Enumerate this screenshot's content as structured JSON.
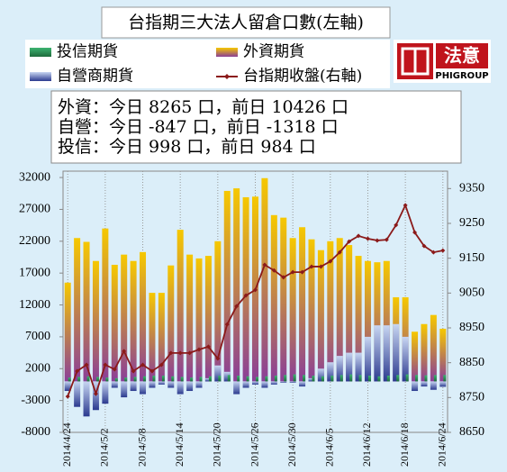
{
  "chart_data": {
    "type": "bar",
    "title": "台指期三大法人留倉口數(左軸)",
    "logo": {
      "text": "法意",
      "subtext": "PHIGROUP"
    },
    "annotations": [
      "外資：今日 8265 口，前日 10426 口",
      "自營：今日 -847 口，前日 -1318 口",
      "投信：今日 998 口，前日 984 口"
    ],
    "categories": [
      "2014/4/24",
      null,
      null,
      null,
      "2014/5/2",
      null,
      null,
      null,
      "2014/5/8",
      null,
      null,
      null,
      "2014/5/14",
      null,
      null,
      null,
      "2014/5/20",
      null,
      null,
      null,
      "2014/5/26",
      null,
      null,
      null,
      "2014/5/30",
      null,
      null,
      null,
      "2014/6/5",
      null,
      null,
      null,
      "2014/6/12",
      null,
      null,
      null,
      "2014/6/18",
      null,
      null,
      null,
      "2014/6/24"
    ],
    "series": [
      {
        "name": "投信期貨",
        "color": "#3cb371",
        "values": [
          600,
          700,
          800,
          700,
          600,
          500,
          600,
          700,
          800,
          900,
          900,
          800,
          700,
          600,
          700,
          800,
          900,
          1000,
          900,
          800,
          700,
          800,
          900,
          1000,
          1100,
          1000,
          900,
          800,
          900,
          1000,
          1100,
          1000,
          900,
          800,
          900,
          1000,
          1100,
          1000,
          950,
          984,
          998
        ]
      },
      {
        "name": "外資期貨",
        "color": "#f6c800",
        "values": [
          15500,
          22500,
          21900,
          18900,
          24000,
          18300,
          19900,
          18900,
          20300,
          13900,
          13900,
          18200,
          23800,
          19900,
          19300,
          19700,
          22000,
          29900,
          30300,
          28900,
          29000,
          31900,
          26100,
          25700,
          22500,
          24200,
          22300,
          20600,
          22000,
          22500,
          21400,
          19700,
          18900,
          18700,
          18900,
          13200,
          13200,
          7800,
          9000,
          10426,
          8265
        ]
      },
      {
        "name": "自營商期貨",
        "color": "#2b3a8f",
        "values": [
          -1500,
          -4000,
          -5500,
          -4500,
          -3500,
          -1000,
          -2500,
          -1500,
          -2000,
          -1000,
          -500,
          -1000,
          -2000,
          -1500,
          -1000,
          500,
          2500,
          1500,
          -2000,
          -1000,
          -500,
          -1000,
          -500,
          -200,
          -200,
          -800,
          500,
          2000,
          3000,
          4000,
          4500,
          4500,
          7000,
          8800,
          8800,
          9000,
          7000,
          -1500,
          -800,
          -1318,
          -847
        ]
      },
      {
        "name": "台指期收盤(右軸)",
        "color": "#8b1a1a",
        "axis": "y2",
        "type": "line",
        "values": [
          8753,
          8826,
          8844,
          8761,
          8844,
          8831,
          8883,
          8826,
          8844,
          8826,
          8844,
          8878,
          8878,
          8878,
          8888,
          8896,
          8862,
          8960,
          9012,
          9043,
          9059,
          9131,
          9115,
          9095,
          9110,
          9110,
          9126,
          9126,
          9141,
          9167,
          9198,
          9214,
          9206,
          9201,
          9203,
          9245,
          9302,
          9224,
          9185,
          9167,
          9172
        ]
      }
    ],
    "ylim": [
      -8000,
      33000
    ],
    "yticks": [
      -8000,
      -3000,
      2000,
      7000,
      12000,
      17000,
      22000,
      27000,
      32000
    ],
    "y2lim": [
      8650,
      9400
    ],
    "y2ticks": [
      8650,
      8750,
      8850,
      8950,
      9050,
      9150,
      9250,
      9350
    ],
    "grid": true
  }
}
